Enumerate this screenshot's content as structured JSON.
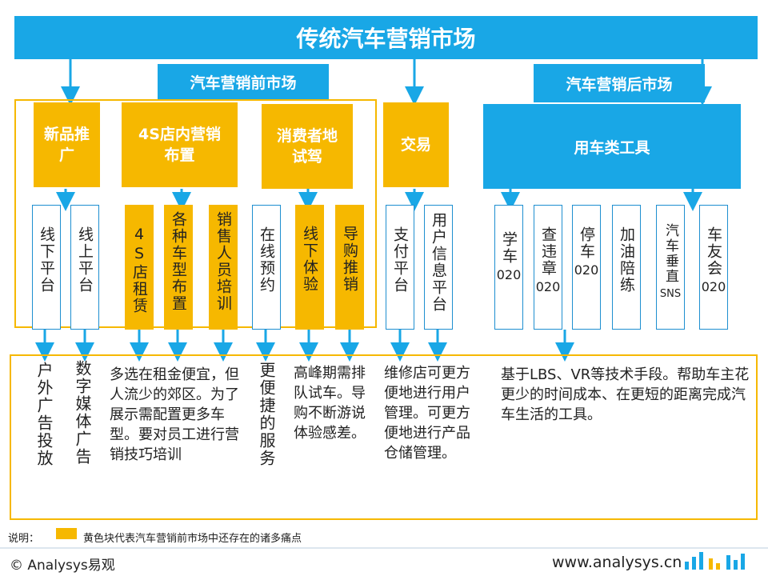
{
  "title": "传统汽车营销市场",
  "pre_market": "汽车营销前市场",
  "after_market": "汽车营销后市场",
  "categories": {
    "new_product": "新品推广",
    "store_layout": "4S店内营销布置",
    "test_drive": "消费者地试驾",
    "trade": "交易",
    "tools": "用车类工具"
  },
  "columns": {
    "offline_platform": "线下平台",
    "online_platform": "线上平台",
    "store_rent": "4S店租赁",
    "car_models": "各种车型布置",
    "staff_training": "销售人员培训",
    "online_booking": "在线预约",
    "offline_experience": "线下体验",
    "guide_sales": "导购推销",
    "payment_platform": "支付平台",
    "user_info_platform": "用户信息平台",
    "driving_school": "学车",
    "driving_school_o2o": "020",
    "violation_check": "查违章",
    "violation_check_o2o": "020",
    "parking": "停车",
    "parking_o2o": "020",
    "refuel_training": "加油陪练",
    "car_sns": "汽车垂直",
    "car_sns_suffix": "SNS",
    "car_club": "车友会",
    "car_club_o2o": "020"
  },
  "descriptions": {
    "outdoor_ads": "户外广告投放",
    "digital_media": "数字媒体广告",
    "rent": "多选在租金便宜，但人流少的郊区。为了展示需配置更多车型。要对员工进行营销技巧培训",
    "convenience": "更便捷的服务",
    "peak": "高峰期需排队试车。导购不断游说体验感差。",
    "repair": "维修店可更方便地进行用户管理。可更方便地进行产品仓储管理。",
    "lbs": "基于LBS、VR等技术手段。帮助车主花更少的时间成本、在更短的距离完成汽车生活的工具。"
  },
  "legend": {
    "prefix": "说明：",
    "text": "黄色块代表汽车营销前市场中还存在的诸多痛点"
  },
  "footer": {
    "brand": "© Analysys易观",
    "url": "www.analysys.cn"
  },
  "colors": {
    "blue": "#19A7E6",
    "yellow": "#F6B800"
  }
}
